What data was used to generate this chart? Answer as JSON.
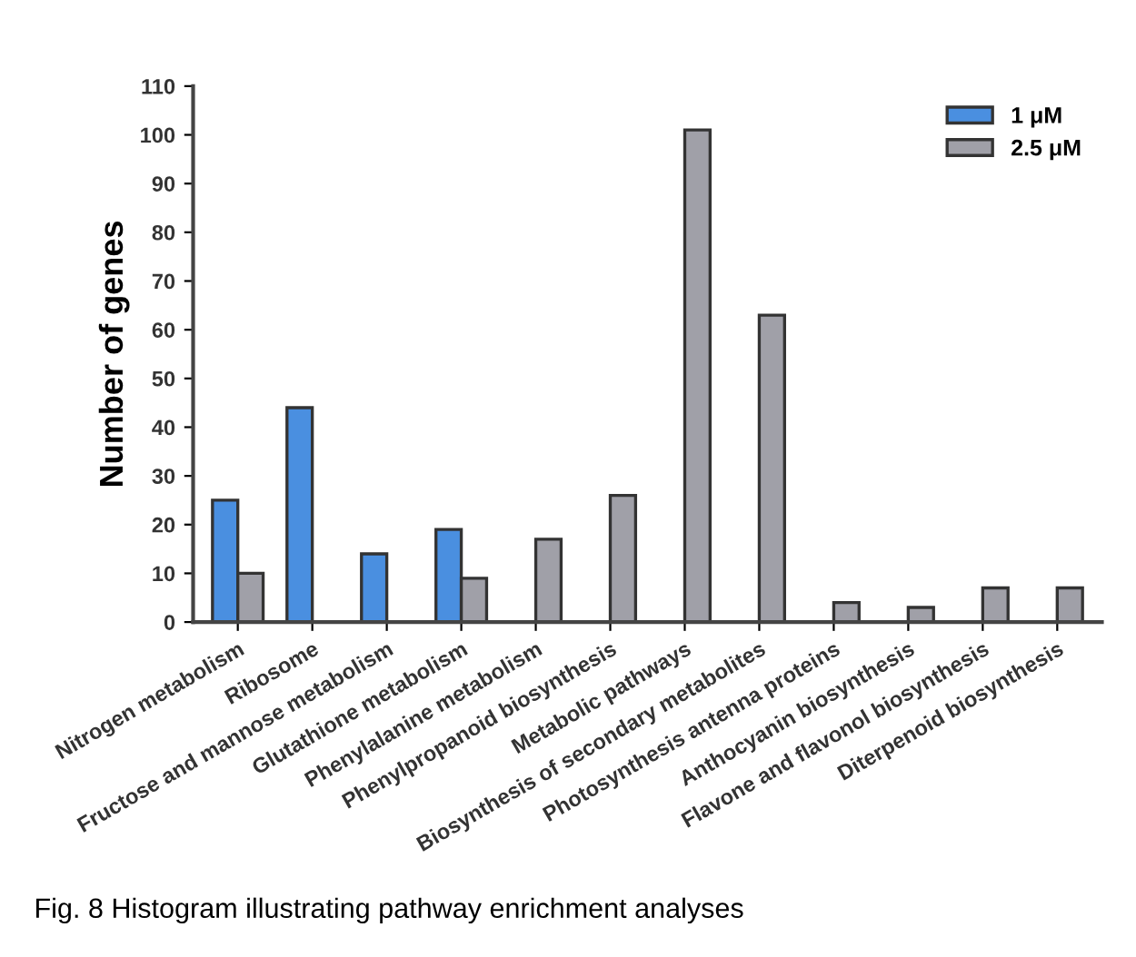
{
  "chart_data": {
    "type": "bar",
    "ylabel": "Number of genes",
    "categories": [
      "Nitrogen metabolism",
      "Ribosome",
      "Fructose and mannose metabolism",
      "Glutathione metabolism",
      "Phenylalanine metabolism",
      "Phenylpropanoid biosynthesis",
      "Metabolic pathways",
      "Biosynthesis of secondary metabolites",
      "Photosynthesis antenna proteins",
      "Anthocyanin biosynthesis",
      "Flavone and flavonol biosynthesis",
      "Diterpenoid biosynthesis"
    ],
    "series": [
      {
        "name": "1 μM",
        "color": "#4a8fe0",
        "values": [
          25,
          44,
          14,
          19,
          null,
          null,
          null,
          null,
          null,
          null,
          null,
          null
        ]
      },
      {
        "name": "2.5 μM",
        "color": "#a0a0a8",
        "values": [
          10,
          null,
          null,
          9,
          17,
          26,
          101,
          63,
          4,
          3,
          7,
          7
        ]
      }
    ],
    "ylim": [
      0,
      110
    ],
    "yticks": [
      0,
      10,
      20,
      30,
      40,
      50,
      60,
      70,
      80,
      90,
      100,
      110
    ],
    "grid": false,
    "legend": "top right",
    "annotations": [
      "Fig. 8 Histogram illustrating pathway enrichment analyses"
    ]
  }
}
